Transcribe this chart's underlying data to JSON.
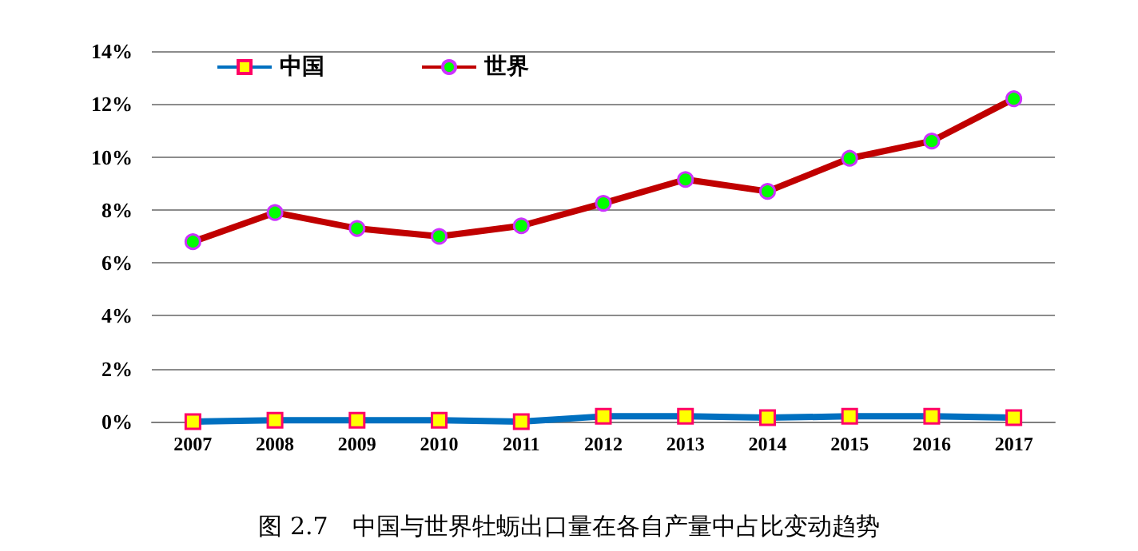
{
  "chart_data": {
    "type": "line",
    "categories": [
      "2007",
      "2008",
      "2009",
      "2010",
      "2011",
      "2012",
      "2013",
      "2014",
      "2015",
      "2016",
      "2017"
    ],
    "series": [
      {
        "name": "中国",
        "color": "#0070c0",
        "marker": "square",
        "values": [
          0,
          0.05,
          0.05,
          0.05,
          0,
          0.2,
          0.2,
          0.15,
          0.2,
          0.2,
          0.15
        ]
      },
      {
        "name": "世界",
        "color": "#c00000",
        "marker": "circle",
        "values": [
          6.8,
          7.9,
          7.3,
          7.0,
          7.4,
          8.25,
          9.15,
          8.7,
          9.95,
          10.6,
          12.2
        ]
      }
    ],
    "ylim": [
      0,
      14
    ],
    "yticks": [
      {
        "value": 0,
        "label": "0%"
      },
      {
        "value": 2,
        "label": "2%"
      },
      {
        "value": 4,
        "label": "4%"
      },
      {
        "value": 6,
        "label": "6%"
      },
      {
        "value": 8,
        "label": "8%"
      },
      {
        "value": 10,
        "label": "10%"
      },
      {
        "value": 12,
        "label": "12%"
      },
      {
        "value": 14,
        "label": "14%"
      }
    ],
    "grid": "y",
    "legend": "top left",
    "annotations": [
      "图 2.7　中国与世界牡蛎出口量在各自产量中占比变动趋势"
    ]
  }
}
